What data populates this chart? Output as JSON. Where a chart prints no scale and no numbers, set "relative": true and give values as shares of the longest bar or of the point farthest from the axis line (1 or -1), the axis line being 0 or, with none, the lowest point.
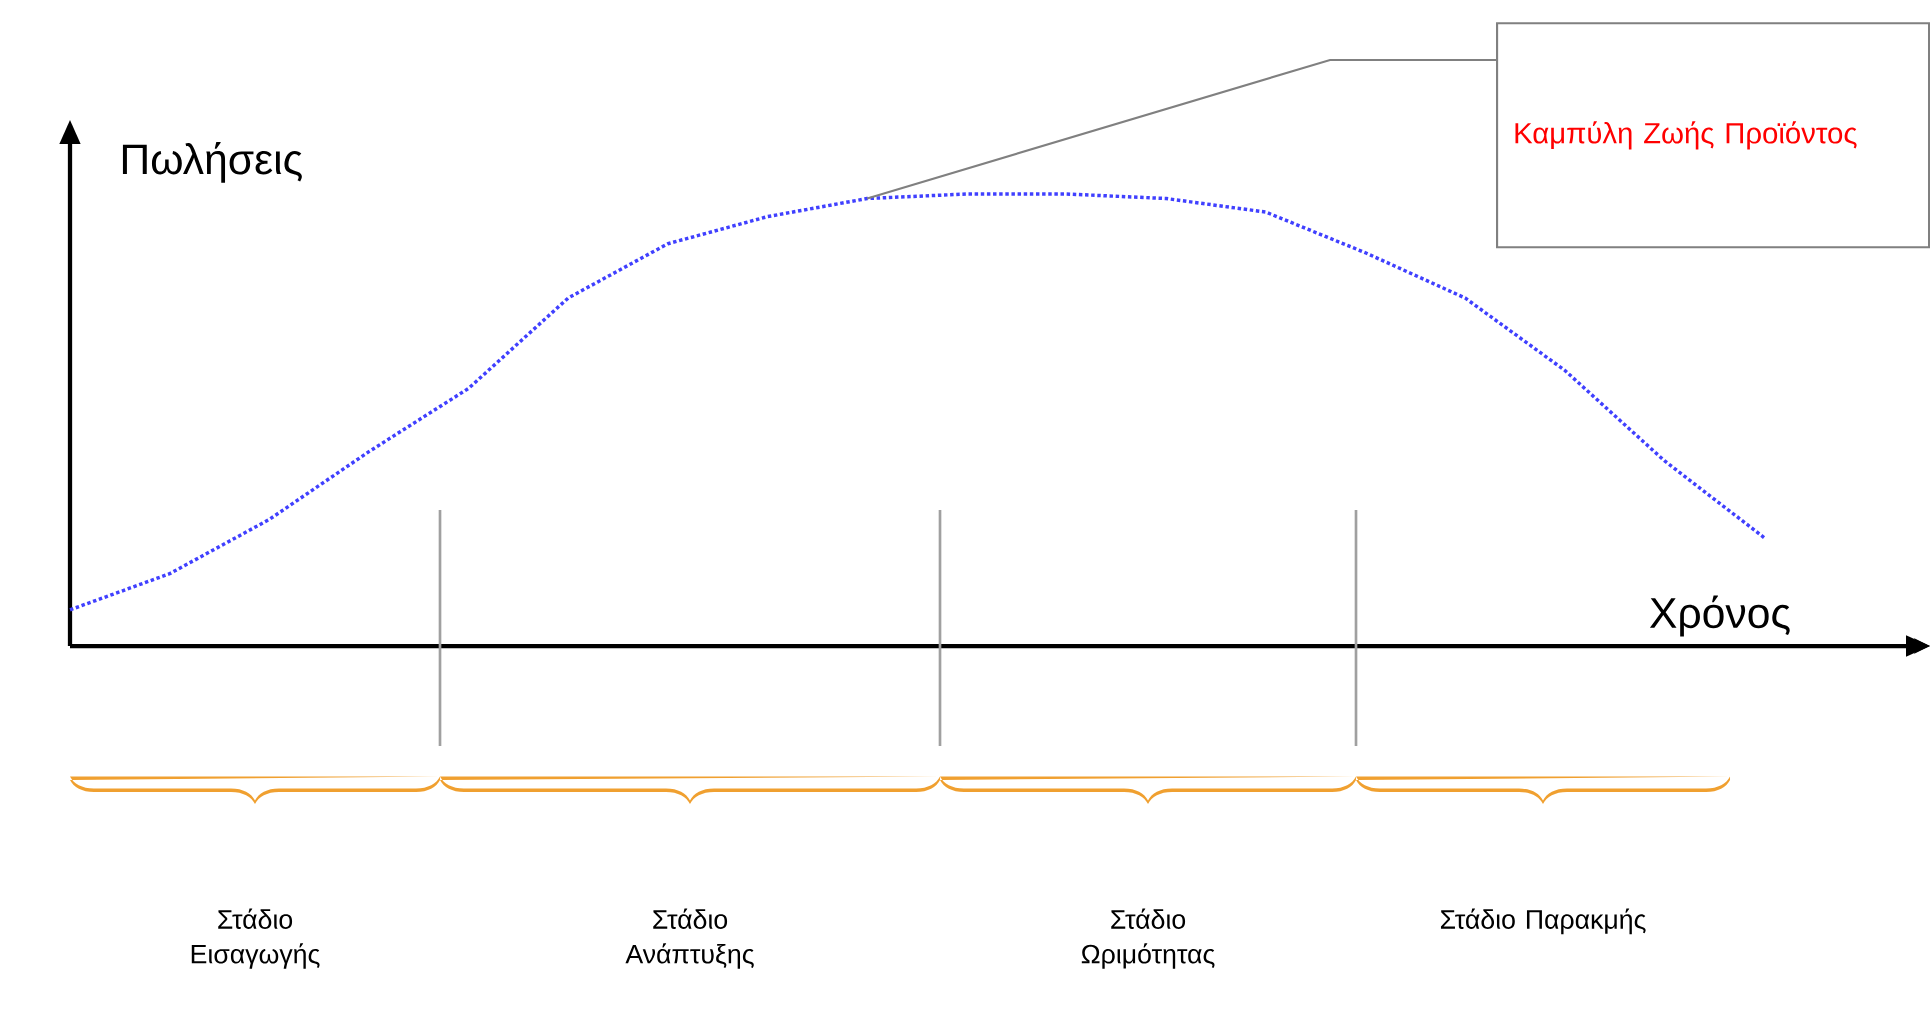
{
  "chart_data": {
    "type": "line",
    "relative": true,
    "xlabel": "Χρόνος",
    "ylabel": "Πωλήσεις",
    "tick_labels": false,
    "categories": [
      null,
      null,
      null,
      null,
      null,
      null,
      null,
      null,
      null,
      null,
      null,
      null,
      null,
      null,
      null,
      null,
      null,
      null
    ],
    "values": [
      0.08,
      0.16,
      0.28,
      0.43,
      0.57,
      0.77,
      0.89,
      0.95,
      0.99,
      1.0,
      1.0,
      0.99,
      0.96,
      0.87,
      0.77,
      0.61,
      0.41,
      0.24
    ],
    "color": "#4040ff",
    "line_style": "dotted",
    "annotations": [
      "Καμπύλη Ζωής Προϊόντος",
      "Στάδιο Εισαγωγής",
      "Στάδιο Ανάπτυξης",
      "Στάδιο Ωριμότητας",
      "Στάδιο Παρακμής"
    ]
  }
}
